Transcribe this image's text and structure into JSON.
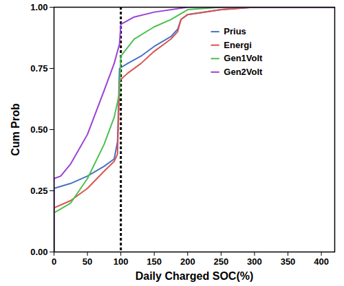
{
  "chart_data": {
    "type": "line",
    "x_label": "Daily Charged SOC(%)",
    "y_label": "Cum Prob",
    "xlim": [
      0,
      420
    ],
    "xticks": [
      0,
      50,
      100,
      150,
      200,
      250,
      300,
      350,
      400
    ],
    "ylim": [
      0,
      1
    ],
    "yticks": [
      {
        "value": 0,
        "label": "0.00"
      },
      {
        "value": 0.25,
        "label": "0.25"
      },
      {
        "value": 0.5,
        "label": "0.50"
      },
      {
        "value": 0.75,
        "label": "0.75"
      },
      {
        "value": 1,
        "label": "1.00"
      }
    ],
    "grid": false,
    "legend": "upper right",
    "vertical_line": {
      "x": 100,
      "line_style": "dashed"
    },
    "series": [
      {
        "name": "Prius",
        "color": "#4472c4",
        "x": [
          0,
          0,
          25,
          50,
          75,
          90,
          95,
          98,
          110,
          130,
          150,
          175,
          185,
          190,
          200,
          250,
          300,
          420
        ],
        "values": [
          0,
          0.26,
          0.28,
          0.31,
          0.35,
          0.38,
          0.45,
          0.75,
          0.77,
          0.8,
          0.84,
          0.88,
          0.91,
          0.95,
          0.97,
          0.99,
          1,
          1
        ]
      },
      {
        "name": "Energi",
        "color": "#d9534f",
        "x": [
          0,
          0,
          25,
          50,
          75,
          90,
          95,
          98,
          110,
          130,
          150,
          175,
          185,
          190,
          200,
          250,
          300,
          420
        ],
        "values": [
          0,
          0.18,
          0.21,
          0.26,
          0.33,
          0.37,
          0.4,
          0.7,
          0.73,
          0.77,
          0.82,
          0.87,
          0.9,
          0.95,
          0.97,
          0.99,
          1,
          1
        ]
      },
      {
        "name": "Gen1Volt",
        "color": "#4cc04c",
        "x": [
          0,
          0,
          25,
          50,
          75,
          90,
          98,
          100,
          120,
          150,
          175,
          200,
          250,
          420
        ],
        "values": [
          0,
          0.16,
          0.2,
          0.3,
          0.44,
          0.55,
          0.65,
          0.8,
          0.87,
          0.92,
          0.95,
          0.99,
          1,
          1
        ]
      },
      {
        "name": "Gen2Volt",
        "color": "#9b3fd6",
        "x": [
          0,
          0,
          10,
          25,
          50,
          75,
          90,
          98,
          100,
          120,
          150,
          200,
          420
        ],
        "values": [
          0,
          0.3,
          0.31,
          0.36,
          0.48,
          0.66,
          0.77,
          0.85,
          0.93,
          0.96,
          0.98,
          1,
          1
        ]
      }
    ]
  }
}
